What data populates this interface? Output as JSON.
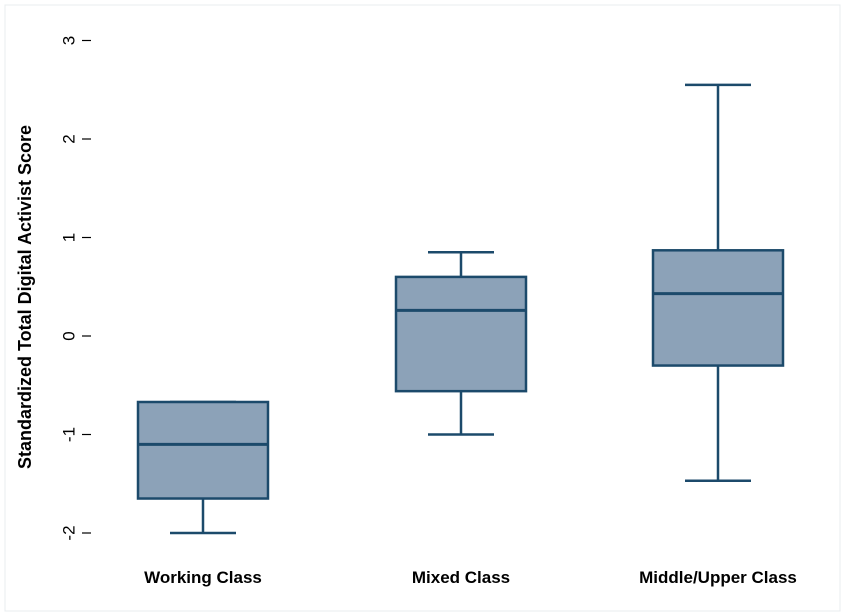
{
  "chart_data": {
    "type": "boxplot",
    "title": "",
    "xlabel": "",
    "ylabel": "Standardized Total Digital Activist Score",
    "ylim": [
      -2.2,
      3.3
    ],
    "yticks": [
      "-2",
      "-1",
      "0",
      "1",
      "2",
      "3"
    ],
    "grid": false,
    "categories": [
      "Working Class",
      "Mixed Class",
      "Middle/Upper Class"
    ],
    "boxes": [
      {
        "whisker_low": -2.0,
        "q1": -1.65,
        "median": -1.1,
        "q3": -0.67,
        "whisker_high": -0.67
      },
      {
        "whisker_low": -1.0,
        "q1": -0.56,
        "median": 0.26,
        "q3": 0.6,
        "whisker_high": 0.85
      },
      {
        "whisker_low": -1.47,
        "q1": -0.3,
        "median": 0.43,
        "q3": 0.87,
        "whisker_high": 2.55
      }
    ],
    "colors": {
      "box_fill": "#8ca2b8",
      "box_stroke": "#1c4a6b",
      "frame": "#e8ecef"
    }
  }
}
